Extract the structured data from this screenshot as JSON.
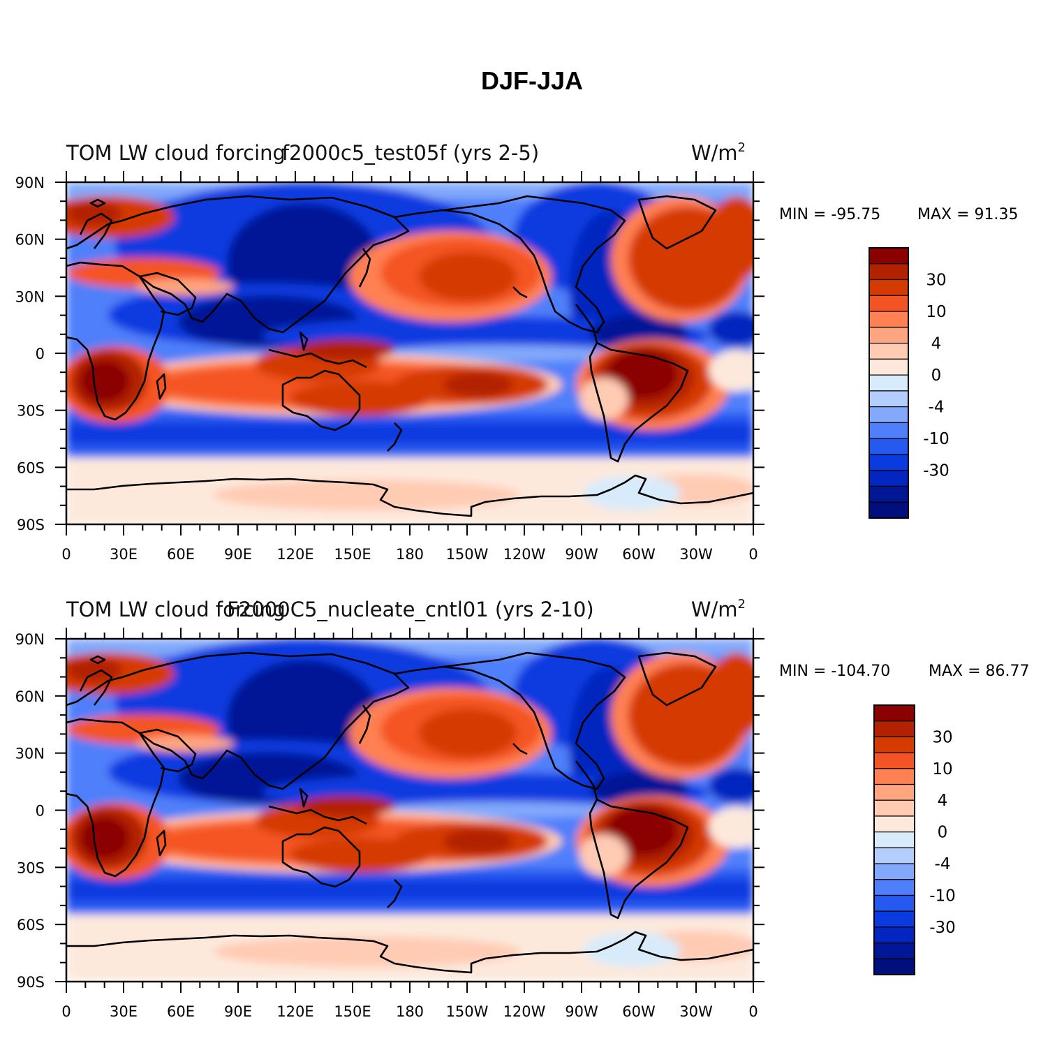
{
  "title": "DJF-JJA",
  "panels": [
    {
      "left_string": "TOM LW cloud forcing",
      "center_string": "f2000c5_test05f (yrs 2-5)",
      "right_string": "W/m",
      "right_superscript": "2",
      "min_label": "MIN = -95.75",
      "max_label": "MAX =  91.35"
    },
    {
      "left_string": "TOM LW cloud forcing",
      "center_string": "F2000C5_nucleate_cntl01 (yrs 2-10)",
      "right_string": "W/m",
      "right_superscript": "2",
      "min_label": "MIN = -104.70",
      "max_label": "MAX =  86.77"
    }
  ],
  "lat_labels": [
    "90N",
    "60N",
    "30N",
    "0",
    "30S",
    "60S",
    "90S"
  ],
  "lon_labels": [
    "0",
    "30E",
    "60E",
    "90E",
    "120E",
    "150E",
    "180",
    "150W",
    "120W",
    "90W",
    "60W",
    "30W",
    "0"
  ],
  "colorbar": {
    "labels": [
      "30",
      "10",
      "4",
      "0",
      "-4",
      "-10",
      "-30"
    ],
    "colors": [
      "#8b0000",
      "#b22200",
      "#d53a00",
      "#f45424",
      "#ff8052",
      "#ffa57f",
      "#ffcbb3",
      "#fde9dc",
      "#d8ebfb",
      "#b3cefc",
      "#82a9fb",
      "#4f7ffa",
      "#2559f0",
      "#0a3be0",
      "#0226bf",
      "#001796",
      "#000f7d"
    ]
  },
  "palette": {
    "strong_red": "#b22200",
    "red": "#d53a00",
    "light_red": "#ffa57f",
    "pale": "#fde9dc",
    "light_blue": "#b3cefc",
    "blue": "#4f7ffa",
    "deep_blue": "#0a3be0",
    "navy": "#001796"
  }
}
